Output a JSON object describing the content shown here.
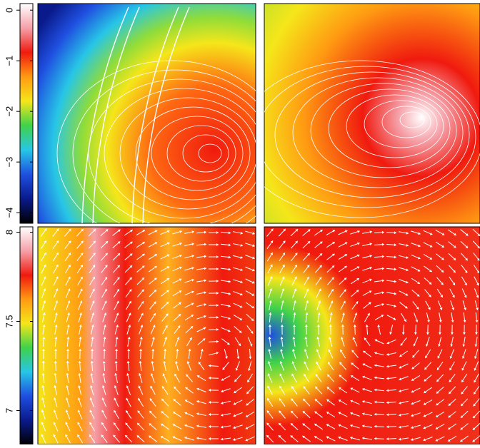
{
  "chart_data": [
    {
      "type": "colorbar",
      "colormap": [
        "#000000",
        "#0a1a8c",
        "#1f4fe0",
        "#27c6e6",
        "#3fd24a",
        "#f5e61a",
        "#ff9a12",
        "#f01a0f",
        "#f5a0a8",
        "#ffffff"
      ],
      "ylim": [
        -4.21,
        0.13
      ],
      "yticks": [
        {
          "value": 0,
          "label": "0"
        },
        {
          "value": -1,
          "label": "−1"
        },
        {
          "value": -2,
          "label": "−2"
        },
        {
          "value": -3,
          "label": "−3"
        },
        {
          "value": -4,
          "label": "−4"
        }
      ]
    },
    {
      "type": "colorbar",
      "colormap": [
        "#000000",
        "#0a1a8c",
        "#1f4fe0",
        "#27c6e6",
        "#3fd24a",
        "#f5e61a",
        "#ff9a12",
        "#f01a0f",
        "#f5a0a8",
        "#ffffff"
      ],
      "ylim": [
        6.81,
        8.03
      ],
      "yticks": [
        7,
        7.5,
        8
      ]
    }
  ]
}
